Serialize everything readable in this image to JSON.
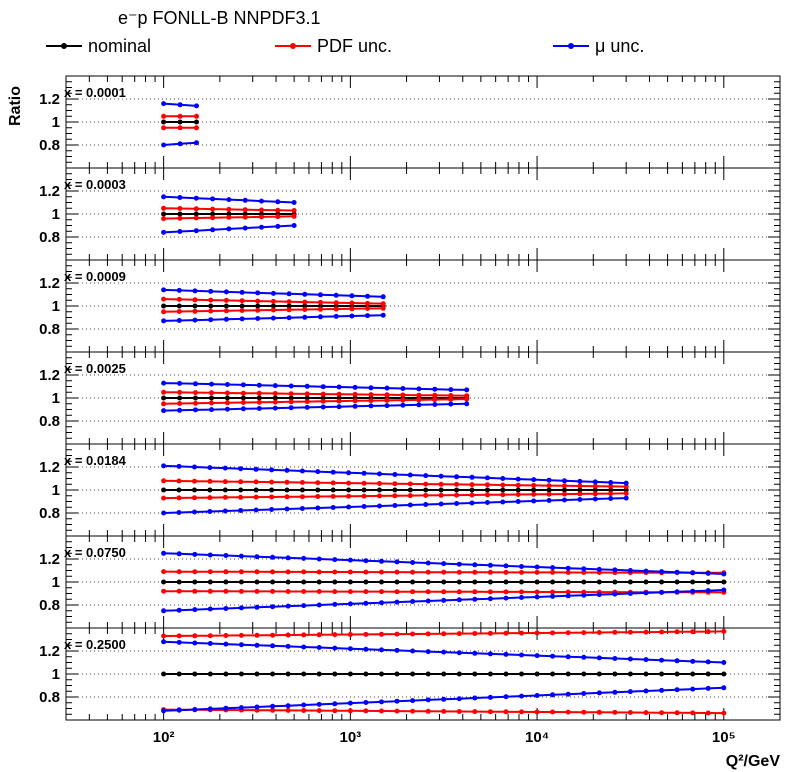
{
  "chart_data": {
    "type": "line",
    "title": "e⁻p FONLL-B NNPDF3.1",
    "ylabel": "Ratio",
    "xlabel": "Q²/GeV",
    "xscale": "log",
    "xlim": [
      30,
      200000
    ],
    "x_tick_labels": [
      "10²",
      "10³",
      "10⁴",
      "10⁵"
    ],
    "x_tick_values": [
      100,
      1000,
      10000,
      100000
    ],
    "y_tick_labels": [
      "0.8",
      "1",
      "1.2"
    ],
    "legend_position": "top",
    "legend": [
      {
        "label": "nominal",
        "color": "#000000"
      },
      {
        "label": "PDF unc.",
        "color": "#ff0000"
      },
      {
        "label": "μ unc.",
        "color": "#0000ff"
      }
    ],
    "grid": "horizontal dotted",
    "panels": [
      {
        "label": "x = 0.0001",
        "ylim": [
          0.6,
          1.4
        ],
        "x": [
          100,
          150
        ],
        "series": [
          {
            "kind": "nominal",
            "values": [
              1.0,
              1.0
            ]
          },
          {
            "kind": "pdf_up",
            "values": [
              1.05,
              1.05
            ]
          },
          {
            "kind": "pdf_down",
            "values": [
              0.95,
              0.95
            ]
          },
          {
            "kind": "mu_up",
            "values": [
              1.16,
              1.14
            ]
          },
          {
            "kind": "mu_down",
            "values": [
              0.8,
              0.82
            ]
          }
        ]
      },
      {
        "label": "x = 0.0003",
        "ylim": [
          0.6,
          1.4
        ],
        "x": [
          100,
          500
        ],
        "series": [
          {
            "kind": "nominal",
            "values": [
              1.0,
              1.0
            ]
          },
          {
            "kind": "pdf_up",
            "values": [
              1.05,
              1.03
            ]
          },
          {
            "kind": "pdf_down",
            "values": [
              0.96,
              0.98
            ]
          },
          {
            "kind": "mu_up",
            "values": [
              1.15,
              1.1
            ]
          },
          {
            "kind": "mu_down",
            "values": [
              0.84,
              0.9
            ]
          }
        ]
      },
      {
        "label": "x = 0.0009",
        "ylim": [
          0.6,
          1.4
        ],
        "x": [
          100,
          1500
        ],
        "series": [
          {
            "kind": "nominal",
            "values": [
              1.0,
              1.0
            ]
          },
          {
            "kind": "pdf_up",
            "values": [
              1.06,
              1.02
            ]
          },
          {
            "kind": "pdf_down",
            "values": [
              0.95,
              0.98
            ]
          },
          {
            "kind": "mu_up",
            "values": [
              1.14,
              1.08
            ]
          },
          {
            "kind": "mu_down",
            "values": [
              0.87,
              0.92
            ]
          }
        ]
      },
      {
        "label": "x = 0.0025",
        "ylim": [
          0.6,
          1.4
        ],
        "x": [
          100,
          4200
        ],
        "series": [
          {
            "kind": "nominal",
            "values": [
              1.0,
              1.0
            ]
          },
          {
            "kind": "pdf_up",
            "values": [
              1.05,
              1.02
            ]
          },
          {
            "kind": "pdf_down",
            "values": [
              0.95,
              0.99
            ]
          },
          {
            "kind": "mu_up",
            "values": [
              1.13,
              1.07
            ]
          },
          {
            "kind": "mu_down",
            "values": [
              0.89,
              0.95
            ]
          }
        ]
      },
      {
        "label": "x = 0.0184",
        "ylim": [
          0.6,
          1.4
        ],
        "x": [
          100,
          30000
        ],
        "series": [
          {
            "kind": "nominal",
            "values": [
              1.0,
              1.0
            ]
          },
          {
            "kind": "pdf_up",
            "values": [
              1.08,
              1.03
            ]
          },
          {
            "kind": "pdf_down",
            "values": [
              0.93,
              0.97
            ]
          },
          {
            "kind": "mu_up",
            "values": [
              1.21,
              1.06
            ]
          },
          {
            "kind": "mu_down",
            "values": [
              0.8,
              0.93
            ]
          }
        ]
      },
      {
        "label": "x = 0.0750",
        "ylim": [
          0.6,
          1.4
        ],
        "x": [
          100,
          100000
        ],
        "series": [
          {
            "kind": "nominal",
            "values": [
              1.0,
              1.0
            ]
          },
          {
            "kind": "pdf_up",
            "values": [
              1.09,
              1.08
            ]
          },
          {
            "kind": "pdf_down",
            "values": [
              0.92,
              0.91
            ]
          },
          {
            "kind": "mu_up",
            "values": [
              1.25,
              1.07
            ]
          },
          {
            "kind": "mu_down",
            "values": [
              0.75,
              0.93
            ]
          }
        ]
      },
      {
        "label": "x = 0.2500",
        "ylim": [
          0.6,
          1.4
        ],
        "x": [
          100,
          100000
        ],
        "series": [
          {
            "kind": "nominal",
            "values": [
              1.0,
              1.0
            ]
          },
          {
            "kind": "pdf_up",
            "values": [
              1.33,
              1.37
            ]
          },
          {
            "kind": "pdf_down",
            "values": [
              0.69,
              0.66
            ]
          },
          {
            "kind": "mu_up",
            "values": [
              1.28,
              1.1
            ]
          },
          {
            "kind": "mu_down",
            "values": [
              0.68,
              0.88
            ]
          }
        ]
      }
    ]
  }
}
